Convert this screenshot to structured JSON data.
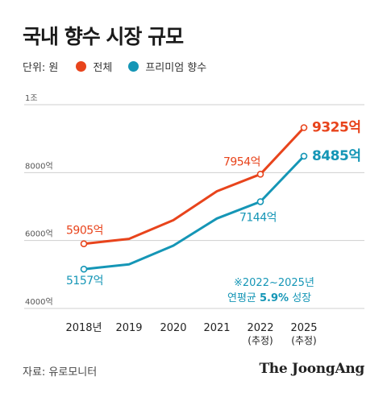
{
  "title": "국내 향수 시장 규모",
  "legend": {
    "unit": "단위: 원",
    "items": [
      {
        "label": "전체",
        "color": "#e8441c"
      },
      {
        "label": "프리미엄 향수",
        "color": "#1596b6"
      }
    ]
  },
  "chart_data": {
    "type": "line",
    "categories": [
      "2018년",
      "2019",
      "2020",
      "2021",
      "2022\n(추정)",
      "2025\n(추정)"
    ],
    "category_main": [
      "2018년",
      "2019",
      "2020",
      "2021",
      "2022",
      "2025"
    ],
    "category_sub": [
      "",
      "",
      "",
      "",
      "(추정)",
      "(추정)"
    ],
    "y_ticks": [
      {
        "value": 10000,
        "label": "1조"
      },
      {
        "value": 8000,
        "label": "8000억"
      },
      {
        "value": 6000,
        "label": "6000억"
      },
      {
        "value": 4000,
        "label": "4000억"
      }
    ],
    "ylim": [
      4000,
      10000
    ],
    "series": [
      {
        "name": "전체",
        "color": "#e8441c",
        "values": [
          5905,
          6050,
          6600,
          7450,
          7954,
          9325
        ],
        "labels": [
          {
            "index": 0,
            "text": "5905억"
          },
          {
            "index": 4,
            "text": "7954억"
          },
          {
            "index": 5,
            "text": "9325억"
          }
        ]
      },
      {
        "name": "프리미엄 향수",
        "color": "#1596b6",
        "values": [
          5157,
          5300,
          5850,
          6650,
          7144,
          8485
        ],
        "labels": [
          {
            "index": 0,
            "text": "5157억"
          },
          {
            "index": 4,
            "text": "7144억"
          },
          {
            "index": 5,
            "text": "8485억"
          }
        ]
      }
    ],
    "annotation": {
      "line1": "※2022~2025년",
      "line2_prefix": "연평균 ",
      "line2_bold": "5.9%",
      "line2_suffix": " 성장",
      "color": "#1596b6"
    }
  },
  "source": "자료: 유로모니터",
  "brand": "The JoongAng"
}
